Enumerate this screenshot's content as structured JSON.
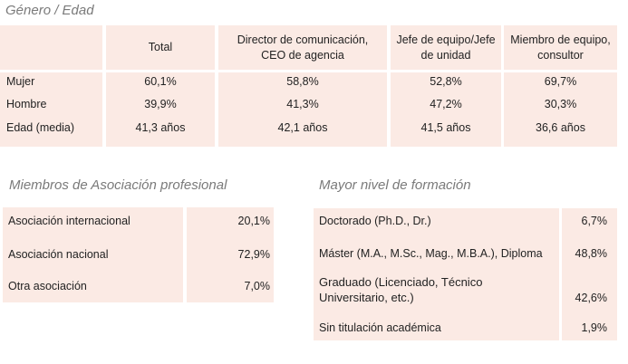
{
  "gender_age": {
    "title": "Género / Edad",
    "headers": [
      "Total",
      "Director de comunicación,\nCEO de agencia",
      "Jefe de equipo/Jefe\nde unidad",
      "Miembro de equipo,\nconsultor"
    ],
    "rows": [
      {
        "label": "Mujer",
        "values": [
          "60,1%",
          "58,8%",
          "52,8%",
          "69,7%"
        ]
      },
      {
        "label": "Hombre",
        "values": [
          "39,9%",
          "41,3%",
          "47,2%",
          "30,3%"
        ]
      },
      {
        "label": "Edad (media)",
        "values": [
          "41,3 años",
          "42,1 años",
          "41,5 años",
          "36,6 años"
        ]
      }
    ]
  },
  "association": {
    "title": "Miembros de Asociación profesional",
    "rows": [
      {
        "label": "Asociación internacional",
        "value": "20,1%"
      },
      {
        "label": "Asociación nacional",
        "value": "72,9%"
      },
      {
        "label": "Otra asociación",
        "value": "7,0%"
      }
    ]
  },
  "education": {
    "title": "Mayor nivel de formación",
    "rows": [
      {
        "label": "Doctorado (Ph.D., Dr.)",
        "value": "6,7%"
      },
      {
        "label": "Máster (M.A., M.Sc., Mag., M.B.A.), Diploma",
        "value": "48,8%"
      },
      {
        "label": "Graduado (Licenciado, Técnico\nUniversitario, etc.)",
        "value": "42,6%"
      },
      {
        "label": "Sin titulación académica",
        "value": "1,9%"
      }
    ]
  }
}
